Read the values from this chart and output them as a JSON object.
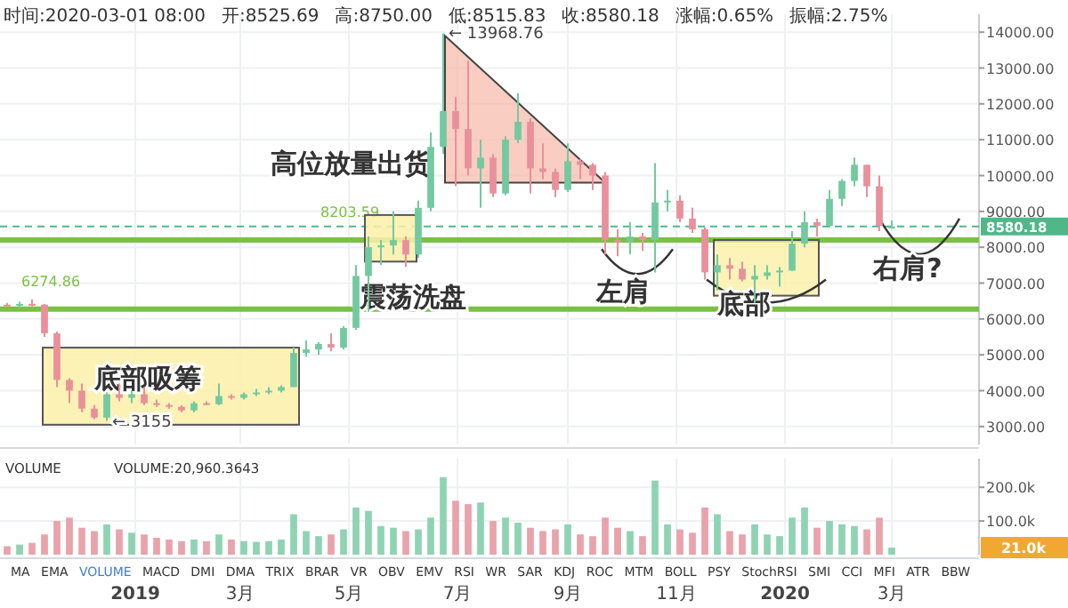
{
  "chart_data": [
    {
      "type": "candlestick",
      "x": [
        "2018-10-21",
        "2018-10-28",
        "2018-11-04",
        "2018-11-11",
        "2018-11-18",
        "2018-11-25",
        "2018-12-02",
        "2018-12-09",
        "2018-12-16",
        "2018-12-23",
        "2018-12-30",
        "2019-01-06",
        "2019-01-13",
        "2019-01-20",
        "2019-01-27",
        "2019-02-03",
        "2019-02-10",
        "2019-02-17",
        "2019-02-24",
        "2019-03-03",
        "2019-03-10",
        "2019-03-17",
        "2019-03-24",
        "2019-03-31",
        "2019-04-07",
        "2019-04-14",
        "2019-04-21",
        "2019-04-28",
        "2019-05-05",
        "2019-05-12",
        "2019-05-19",
        "2019-05-26",
        "2019-06-02",
        "2019-06-09",
        "2019-06-16",
        "2019-06-23",
        "2019-06-30",
        "2019-07-07",
        "2019-07-14",
        "2019-07-21",
        "2019-07-28",
        "2019-08-04",
        "2019-08-11",
        "2019-08-18",
        "2019-08-25",
        "2019-09-01",
        "2019-09-08",
        "2019-09-15",
        "2019-09-22",
        "2019-09-29",
        "2019-10-06",
        "2019-10-13",
        "2019-10-20",
        "2019-10-27",
        "2019-11-03",
        "2019-11-10",
        "2019-11-17",
        "2019-11-24",
        "2019-12-01",
        "2019-12-08",
        "2019-12-15",
        "2019-12-22",
        "2019-12-29",
        "2020-01-05",
        "2020-01-12",
        "2020-01-19",
        "2020-01-26",
        "2020-02-02",
        "2020-02-09",
        "2020-02-16",
        "2020-02-23",
        "2020-03-01"
      ],
      "ohlc": [
        [
          6400,
          6450,
          6350,
          6380
        ],
        [
          6380,
          6480,
          6300,
          6420
        ],
        [
          6420,
          6550,
          6350,
          6400
        ],
        [
          6400,
          6420,
          5500,
          5600
        ],
        [
          5600,
          5650,
          4100,
          4300
        ],
        [
          4300,
          4350,
          3650,
          4000
        ],
        [
          4000,
          4200,
          3400,
          3500
        ],
        [
          3500,
          3600,
          3200,
          3250
        ],
        [
          3250,
          3950,
          3155,
          3900
        ],
        [
          3900,
          4200,
          3700,
          3800
        ],
        [
          3800,
          4000,
          3650,
          3900
        ],
        [
          3900,
          4100,
          3600,
          3650
        ],
        [
          3650,
          3750,
          3550,
          3600
        ],
        [
          3600,
          3650,
          3500,
          3550
        ],
        [
          3550,
          3600,
          3400,
          3450
        ],
        [
          3450,
          3700,
          3400,
          3650
        ],
        [
          3650,
          3700,
          3600,
          3620
        ],
        [
          3620,
          4200,
          3600,
          3850
        ],
        [
          3850,
          3900,
          3750,
          3800
        ],
        [
          3800,
          3950,
          3750,
          3900
        ],
        [
          3900,
          4050,
          3850,
          3950
        ],
        [
          3950,
          4100,
          3900,
          4000
        ],
        [
          4000,
          4150,
          3950,
          4100
        ],
        [
          4100,
          5200,
          4100,
          5050
        ],
        [
          5050,
          5400,
          4950,
          5150
        ],
        [
          5150,
          5350,
          5000,
          5300
        ],
        [
          5300,
          5600,
          5100,
          5200
        ],
        [
          5200,
          5800,
          5150,
          5750
        ],
        [
          5750,
          7500,
          5700,
          7200
        ],
        [
          7200,
          8300,
          6200,
          8000
        ],
        [
          8000,
          8200,
          7500,
          8050
        ],
        [
          8050,
          9000,
          7800,
          8200
        ],
        [
          8200,
          8300,
          7450,
          7800
        ],
        [
          7800,
          9300,
          7700,
          9100
        ],
        [
          9100,
          11200,
          9000,
          10800
        ],
        [
          10800,
          13968.76,
          10600,
          11800
        ],
        [
          11800,
          12200,
          9700,
          11300
        ],
        [
          11300,
          13200,
          10000,
          10200
        ],
        [
          10200,
          11000,
          9100,
          10500
        ],
        [
          10500,
          10600,
          9400,
          9500
        ],
        [
          9500,
          11100,
          9450,
          11000
        ],
        [
          11000,
          12300,
          10900,
          11500
        ],
        [
          11500,
          11600,
          9500,
          10200
        ],
        [
          10200,
          10900,
          9900,
          10100
        ],
        [
          10100,
          10200,
          9400,
          9600
        ],
        [
          9600,
          10900,
          9550,
          10400
        ],
        [
          10400,
          10450,
          9900,
          10300
        ],
        [
          10300,
          10350,
          9600,
          10000
        ],
        [
          10000,
          10100,
          7800,
          8200
        ],
        [
          8200,
          8500,
          7750,
          8150
        ],
        [
          8150,
          8700,
          7800,
          8300
        ],
        [
          8300,
          8400,
          7900,
          8200
        ],
        [
          8200,
          10350,
          7300,
          9250
        ],
        [
          9250,
          9600,
          9000,
          9300
        ],
        [
          9300,
          9450,
          8700,
          8800
        ],
        [
          8800,
          9100,
          8400,
          8500
        ],
        [
          8500,
          8550,
          7100,
          7300
        ],
        [
          7300,
          7800,
          6800,
          7500
        ],
        [
          7500,
          7700,
          7100,
          7400
        ],
        [
          7400,
          7600,
          7050,
          7100
        ],
        [
          7100,
          7500,
          6450,
          7200
        ],
        [
          7200,
          7500,
          7100,
          7300
        ],
        [
          7300,
          7450,
          6900,
          7350
        ],
        [
          7350,
          8450,
          7350,
          8100
        ],
        [
          8100,
          9000,
          8000,
          8700
        ],
        [
          8700,
          8800,
          8300,
          8600
        ],
        [
          8600,
          9600,
          8550,
          9350
        ],
        [
          9350,
          9900,
          9150,
          9850
        ],
        [
          9850,
          10500,
          9700,
          10300
        ],
        [
          10300,
          10300,
          9400,
          9700
        ],
        [
          9700,
          10000,
          8450,
          8600
        ],
        [
          8525.69,
          8750,
          8515.83,
          8580.18
        ]
      ],
      "colors": [
        "#e8909b",
        "#73c9a0",
        "#e8909b",
        "#e8909b",
        "#e8909b",
        "#e8909b",
        "#e8909b",
        "#e8909b",
        "#73c9a0",
        "#e8909b",
        "#73c9a0",
        "#e8909b",
        "#e8909b",
        "#e8909b",
        "#e8909b",
        "#73c9a0",
        "#e8909b",
        "#73c9a0",
        "#e8909b",
        "#73c9a0",
        "#73c9a0",
        "#73c9a0",
        "#73c9a0",
        "#73c9a0",
        "#73c9a0",
        "#73c9a0",
        "#e8909b",
        "#73c9a0",
        "#73c9a0",
        "#73c9a0",
        "#73c9a0",
        "#73c9a0",
        "#e8909b",
        "#73c9a0",
        "#73c9a0",
        "#73c9a0",
        "#e8909b",
        "#e8909b",
        "#73c9a0",
        "#e8909b",
        "#73c9a0",
        "#73c9a0",
        "#e8909b",
        "#e8909b",
        "#e8909b",
        "#73c9a0",
        "#e8909b",
        "#e8909b",
        "#e8909b",
        "#e8909b",
        "#73c9a0",
        "#e8909b",
        "#73c9a0",
        "#73c9a0",
        "#e8909b",
        "#e8909b",
        "#e8909b",
        "#73c9a0",
        "#e8909b",
        "#e8909b",
        "#73c9a0",
        "#73c9a0",
        "#73c9a0",
        "#73c9a0",
        "#73c9a0",
        "#e8909b",
        "#73c9a0",
        "#73c9a0",
        "#73c9a0",
        "#e8909b",
        "#e8909b",
        "#73c9a0"
      ],
      "xlim": [
        "2018-10-17",
        "2020-04-19"
      ],
      "xticks": [
        {
          "value": "2019-01-01",
          "label": null
        },
        {
          "value": "2019-03-01",
          "label": null
        },
        {
          "value": "2019-05-01",
          "label": null
        },
        {
          "value": "2019-07-01",
          "label": null
        },
        {
          "value": "2019-09-01",
          "label": null
        },
        {
          "value": "2019-11-01",
          "label": null
        },
        {
          "value": "2020-01-01",
          "label": null
        },
        {
          "value": "2020-03-01",
          "label": null
        }
      ],
      "ylim": [
        2500,
        14500
      ],
      "yticks": [
        {
          "value": 3000,
          "label": "3000.00"
        },
        {
          "value": 4000,
          "label": "4000.00"
        },
        {
          "value": 5000,
          "label": "5000.00"
        },
        {
          "value": 6000,
          "label": "6000.00"
        },
        {
          "value": 7000,
          "label": "7000.00"
        },
        {
          "value": 8000,
          "label": "8000.00"
        },
        {
          "value": 9000,
          "label": "9000.00"
        },
        {
          "value": 10000,
          "label": "10000.00"
        },
        {
          "value": 11000,
          "label": "11000.00"
        },
        {
          "value": 12000,
          "label": "12000.00"
        },
        {
          "value": 13000,
          "label": "13000.00"
        },
        {
          "value": 14000,
          "label": "14000.00"
        }
      ],
      "tick_labels": "y",
      "grid": true,
      "ref_lines": [
        {
          "axis": "y",
          "value": 6274.86,
          "label": "6274.86",
          "color": "#7ac143"
        },
        {
          "axis": "y",
          "value": 8203.59,
          "label": "8203.59",
          "color": "#7ac143"
        },
        {
          "axis": "y",
          "value": 8580.18,
          "label": "8580.18",
          "color": "#4fb889",
          "line_style": "dashed"
        }
      ],
      "annotations": [
        {
          "text": "← 13968.76",
          "x": "2019-06-23",
          "y": 13968.76
        },
        {
          "text": "← 3155",
          "x": "2018-12-16",
          "y": 3155
        },
        "底部吸筹",
        "震荡洗盘",
        "高位放量出货",
        "左肩",
        "底部",
        "右肩?",
        "时间:2020-03-01 08:00",
        "开:8525.69",
        "高:8750.00",
        "低:8515.83",
        "收:8580.18",
        "涨幅:0.65%",
        "振幅:2.75%"
      ]
    },
    {
      "type": "bar",
      "x": [
        "2018-10-21",
        "2018-10-28",
        "2018-11-04",
        "2018-11-11",
        "2018-11-18",
        "2018-11-25",
        "2018-12-02",
        "2018-12-09",
        "2018-12-16",
        "2018-12-23",
        "2018-12-30",
        "2019-01-06",
        "2019-01-13",
        "2019-01-20",
        "2019-01-27",
        "2019-02-03",
        "2019-02-10",
        "2019-02-17",
        "2019-02-24",
        "2019-03-03",
        "2019-03-10",
        "2019-03-17",
        "2019-03-24",
        "2019-03-31",
        "2019-04-07",
        "2019-04-14",
        "2019-04-21",
        "2019-04-28",
        "2019-05-05",
        "2019-05-12",
        "2019-05-19",
        "2019-05-26",
        "2019-06-02",
        "2019-06-09",
        "2019-06-16",
        "2019-06-23",
        "2019-06-30",
        "2019-07-07",
        "2019-07-14",
        "2019-07-21",
        "2019-07-28",
        "2019-08-04",
        "2019-08-11",
        "2019-08-18",
        "2019-08-25",
        "2019-09-01",
        "2019-09-08",
        "2019-09-15",
        "2019-09-22",
        "2019-09-29",
        "2019-10-06",
        "2019-10-13",
        "2019-10-20",
        "2019-10-27",
        "2019-11-03",
        "2019-11-10",
        "2019-11-17",
        "2019-11-24",
        "2019-12-01",
        "2019-12-08",
        "2019-12-15",
        "2019-12-22",
        "2019-12-29",
        "2020-01-05",
        "2020-01-12",
        "2020-01-19",
        "2020-01-26",
        "2020-02-02",
        "2020-02-09",
        "2020-02-16",
        "2020-02-23",
        "2020-03-01"
      ],
      "values": [
        25000,
        30000,
        35000,
        60000,
        100000,
        110000,
        80000,
        70000,
        90000,
        75000,
        65000,
        60000,
        50000,
        45000,
        40000,
        45000,
        40000,
        60000,
        45000,
        40000,
        38000,
        40000,
        45000,
        120000,
        70000,
        55000,
        60000,
        75000,
        140000,
        130000,
        85000,
        80000,
        70000,
        75000,
        110000,
        230000,
        160000,
        150000,
        155000,
        100000,
        110000,
        95000,
        80000,
        70000,
        75000,
        90000,
        60000,
        55000,
        110000,
        80000,
        70000,
        55000,
        220000,
        90000,
        75000,
        65000,
        140000,
        120000,
        70000,
        60000,
        90000,
        60000,
        55000,
        110000,
        140000,
        80000,
        100000,
        90000,
        85000,
        75000,
        110000,
        20960.3643
      ],
      "colors": [
        "#e8a3ab",
        "#8fd3b3",
        "#e8a3ab",
        "#e8a3ab",
        "#e8a3ab",
        "#e8a3ab",
        "#e8a3ab",
        "#e8a3ab",
        "#8fd3b3",
        "#e8a3ab",
        "#8fd3b3",
        "#e8a3ab",
        "#e8a3ab",
        "#e8a3ab",
        "#e8a3ab",
        "#8fd3b3",
        "#e8a3ab",
        "#8fd3b3",
        "#e8a3ab",
        "#8fd3b3",
        "#8fd3b3",
        "#8fd3b3",
        "#8fd3b3",
        "#8fd3b3",
        "#8fd3b3",
        "#8fd3b3",
        "#e8a3ab",
        "#8fd3b3",
        "#8fd3b3",
        "#8fd3b3",
        "#8fd3b3",
        "#8fd3b3",
        "#e8a3ab",
        "#8fd3b3",
        "#8fd3b3",
        "#8fd3b3",
        "#e8a3ab",
        "#e8a3ab",
        "#8fd3b3",
        "#e8a3ab",
        "#8fd3b3",
        "#8fd3b3",
        "#e8a3ab",
        "#e8a3ab",
        "#e8a3ab",
        "#8fd3b3",
        "#e8a3ab",
        "#e8a3ab",
        "#e8a3ab",
        "#e8a3ab",
        "#8fd3b3",
        "#e8a3ab",
        "#8fd3b3",
        "#8fd3b3",
        "#e8a3ab",
        "#e8a3ab",
        "#e8a3ab",
        "#8fd3b3",
        "#e8a3ab",
        "#e8a3ab",
        "#8fd3b3",
        "#8fd3b3",
        "#8fd3b3",
        "#8fd3b3",
        "#8fd3b3",
        "#e8a3ab",
        "#8fd3b3",
        "#8fd3b3",
        "#8fd3b3",
        "#e8a3ab",
        "#e8a3ab",
        "#8fd3b3"
      ],
      "xlim": [
        "2018-10-17",
        "2020-04-19"
      ],
      "xticks": [
        {
          "value": "2019-01-01",
          "label": "2019"
        },
        {
          "value": "2019-03-01",
          "label": "3月"
        },
        {
          "value": "2019-05-01",
          "label": "5月"
        },
        {
          "value": "2019-07-01",
          "label": "7月"
        },
        {
          "value": "2019-09-01",
          "label": "9月"
        },
        {
          "value": "2019-11-01",
          "label": "11月"
        },
        {
          "value": "2020-01-01",
          "label": "2020"
        },
        {
          "value": "2020-03-01",
          "label": "3月"
        }
      ],
      "ylim": [
        0,
        285000
      ],
      "yticks": [
        {
          "value": 100000,
          "label": "100.0k"
        },
        {
          "value": 200000,
          "label": "200.0k"
        }
      ],
      "grid": true,
      "annotations": [
        "VOLUME",
        "VOLUME:20,960.3643",
        "21.0k",
        "MA",
        "EMA",
        "VOLUME",
        "MACD",
        "DMI",
        "DMA",
        "TRIX",
        "BRAR",
        "VR",
        "OBV",
        "EMV",
        "RSI",
        "WR",
        "SAR",
        "KDJ",
        "ROC",
        "MTM",
        "BOLL",
        "PSY",
        "StochRSI",
        "SMI",
        "CCI",
        "MFI",
        "ATR",
        "BBW"
      ]
    }
  ]
}
